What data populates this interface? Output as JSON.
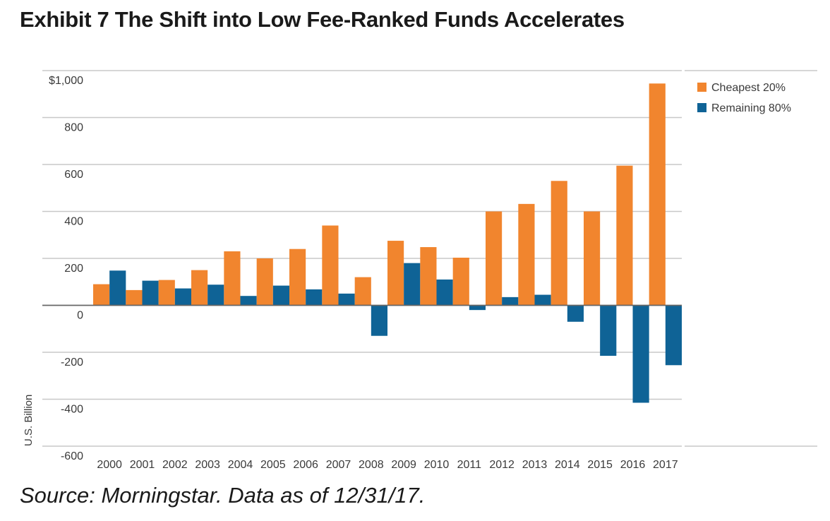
{
  "title": "Exhibit 7 The Shift into Low Fee-Ranked Funds Accelerates",
  "source": "Source: Morningstar. Data as of 12/31/17.",
  "chart_data": {
    "type": "bar",
    "title": "Exhibit 7 The Shift into Low Fee-Ranked Funds Accelerates",
    "ylabel": "U.S. Billion",
    "xlabel": "",
    "ylim": [
      -600,
      1000
    ],
    "yticks": [
      1000,
      800,
      600,
      400,
      200,
      0,
      -200,
      -400,
      -600
    ],
    "ytick_labels": [
      "$1,000",
      "800",
      "600",
      "400",
      "200",
      "0",
      "-200",
      "-400",
      "-600"
    ],
    "grid": true,
    "legend_position": "top-right",
    "categories": [
      "2000",
      "2001",
      "2002",
      "2003",
      "2004",
      "2005",
      "2006",
      "2007",
      "2008",
      "2009",
      "2010",
      "2011",
      "2012",
      "2013",
      "2014",
      "2015",
      "2016",
      "2017"
    ],
    "series": [
      {
        "name": "Cheapest 20%",
        "color": "#f1852e",
        "values": [
          90,
          65,
          108,
          150,
          230,
          200,
          240,
          340,
          120,
          275,
          248,
          203,
          400,
          432,
          530,
          400,
          595,
          945
        ]
      },
      {
        "name": "Remaining 80%",
        "color": "#0f6396",
        "values": [
          148,
          105,
          72,
          88,
          40,
          84,
          68,
          50,
          -130,
          180,
          110,
          -20,
          35,
          45,
          -70,
          -215,
          -415,
          -255
        ]
      }
    ]
  }
}
